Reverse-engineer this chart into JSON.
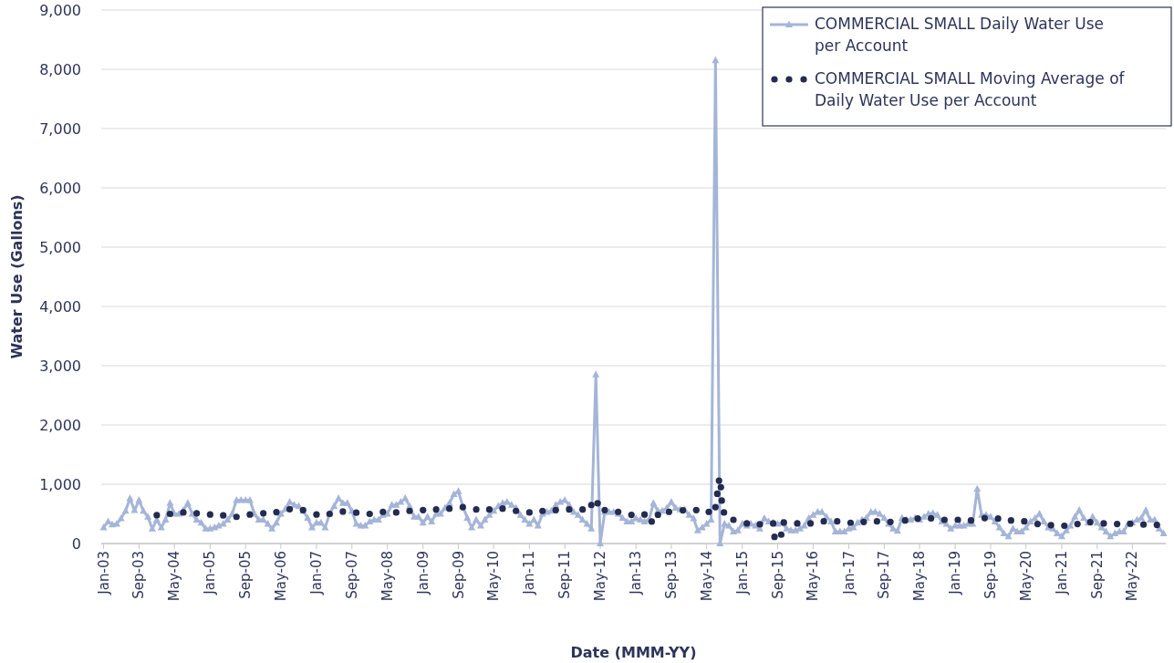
{
  "chart_data": {
    "type": "line",
    "xlabel": "Date (MMM-YY)",
    "ylabel": "Water Use (Gallons)",
    "x": [
      "2003-01",
      "2003-02",
      "2003-03",
      "2003-04",
      "2003-05",
      "2003-06",
      "2003-07",
      "2003-08",
      "2003-09",
      "2003-10",
      "2003-11",
      "2003-12",
      "2004-01",
      "2004-02",
      "2004-03",
      "2004-04",
      "2004-05",
      "2004-06",
      "2004-07",
      "2004-08",
      "2004-09",
      "2004-10",
      "2004-11",
      "2004-12",
      "2005-01",
      "2005-02",
      "2005-03",
      "2005-04",
      "2005-05",
      "2005-06",
      "2005-07",
      "2005-08",
      "2005-09",
      "2005-10",
      "2005-11",
      "2005-12",
      "2006-01",
      "2006-02",
      "2006-03",
      "2006-04",
      "2006-05",
      "2006-06",
      "2006-07",
      "2006-08",
      "2006-09",
      "2006-10",
      "2006-11",
      "2006-12",
      "2007-01",
      "2007-02",
      "2007-03",
      "2007-04",
      "2007-05",
      "2007-06",
      "2007-07",
      "2007-08",
      "2007-09",
      "2007-10",
      "2007-11",
      "2007-12",
      "2008-01",
      "2008-02",
      "2008-03",
      "2008-04",
      "2008-05",
      "2008-06",
      "2008-07",
      "2008-08",
      "2008-09",
      "2008-10",
      "2008-11",
      "2008-12",
      "2009-01",
      "2009-02",
      "2009-03",
      "2009-04",
      "2009-05",
      "2009-06",
      "2009-07",
      "2009-08",
      "2009-09",
      "2009-10",
      "2009-11",
      "2009-12",
      "2010-01",
      "2010-02",
      "2010-03",
      "2010-04",
      "2010-05",
      "2010-06",
      "2010-07",
      "2010-08",
      "2010-09",
      "2010-10",
      "2010-11",
      "2010-12",
      "2011-01",
      "2011-02",
      "2011-03",
      "2011-04",
      "2011-05",
      "2011-06",
      "2011-07",
      "2011-08",
      "2011-09",
      "2011-10",
      "2011-11",
      "2011-12",
      "2012-01",
      "2012-02",
      "2012-03",
      "2012-04",
      "2012-05",
      "2012-06",
      "2012-07",
      "2012-08",
      "2012-09",
      "2012-10",
      "2012-11",
      "2012-12",
      "2013-01",
      "2013-02",
      "2013-03",
      "2013-04",
      "2013-05",
      "2013-06",
      "2013-07",
      "2013-08",
      "2013-09",
      "2013-10",
      "2013-11",
      "2013-12",
      "2014-01",
      "2014-02",
      "2014-03",
      "2014-04",
      "2014-05",
      "2014-06",
      "2014-07",
      "2014-08",
      "2014-09",
      "2014-10",
      "2014-11",
      "2014-12",
      "2015-01",
      "2015-02",
      "2015-03",
      "2015-04",
      "2015-05",
      "2015-06",
      "2015-07",
      "2015-08",
      "2015-09",
      "2015-10",
      "2015-11",
      "2015-12",
      "2016-01",
      "2016-02",
      "2016-03",
      "2016-04",
      "2016-05",
      "2016-06",
      "2016-07",
      "2016-08",
      "2016-09",
      "2016-10",
      "2016-11",
      "2016-12",
      "2017-01",
      "2017-02",
      "2017-03",
      "2017-04",
      "2017-05",
      "2017-06",
      "2017-07",
      "2017-08",
      "2017-09",
      "2017-10",
      "2017-11",
      "2017-12",
      "2018-01",
      "2018-02",
      "2018-03",
      "2018-04",
      "2018-05",
      "2018-06",
      "2018-07",
      "2018-08",
      "2018-09",
      "2018-10",
      "2018-11",
      "2018-12",
      "2019-01",
      "2019-02",
      "2019-03",
      "2019-04",
      "2019-05",
      "2019-06",
      "2019-07",
      "2019-08",
      "2019-09",
      "2019-10",
      "2019-11",
      "2019-12",
      "2020-01",
      "2020-02",
      "2020-03",
      "2020-04",
      "2020-05",
      "2020-06",
      "2020-07",
      "2020-08",
      "2020-09",
      "2020-10",
      "2020-11",
      "2020-12",
      "2021-01",
      "2021-02",
      "2021-03",
      "2021-04",
      "2021-05",
      "2021-06",
      "2021-07",
      "2021-08",
      "2021-09",
      "2021-10",
      "2021-11",
      "2021-12",
      "2022-01",
      "2022-02",
      "2022-03",
      "2022-04",
      "2022-05",
      "2022-06",
      "2022-07",
      "2022-08",
      "2022-09",
      "2022-10",
      "2022-11",
      "2022-12"
    ],
    "series": [
      {
        "name": "COMMERCIAL SMALL Daily Water Use per Account",
        "color": "#a5b5d8",
        "marker": "triangle",
        "values": [
          270,
          370,
          320,
          330,
          425,
          550,
          760,
          560,
          730,
          550,
          450,
          250,
          400,
          270,
          400,
          680,
          500,
          500,
          560,
          680,
          500,
          400,
          350,
          250,
          250,
          270,
          300,
          330,
          400,
          500,
          730,
          730,
          730,
          730,
          500,
          400,
          400,
          330,
          250,
          350,
          500,
          580,
          700,
          650,
          630,
          550,
          430,
          270,
          350,
          350,
          270,
          500,
          630,
          760,
          680,
          680,
          550,
          330,
          300,
          300,
          370,
          400,
          400,
          480,
          500,
          650,
          650,
          700,
          760,
          630,
          450,
          450,
          350,
          450,
          370,
          500,
          500,
          600,
          680,
          830,
          880,
          630,
          430,
          270,
          400,
          300,
          400,
          480,
          550,
          630,
          680,
          700,
          650,
          600,
          480,
          400,
          330,
          400,
          300,
          500,
          530,
          550,
          650,
          700,
          730,
          650,
          530,
          480,
          400,
          330,
          250,
          2850,
          0,
          530,
          530,
          530,
          500,
          430,
          370,
          370,
          425,
          400,
          370,
          400,
          680,
          550,
          550,
          600,
          700,
          600,
          575,
          575,
          480,
          425,
          220,
          270,
          330,
          400,
          8150,
          0,
          330,
          300,
          200,
          220,
          330,
          300,
          330,
          300,
          250,
          425,
          370,
          350,
          330,
          350,
          250,
          220,
          220,
          250,
          300,
          425,
          480,
          530,
          530,
          450,
          370,
          200,
          200,
          200,
          250,
          270,
          350,
          400,
          430,
          530,
          530,
          500,
          430,
          330,
          250,
          210,
          430,
          400,
          400,
          430,
          400,
          450,
          500,
          510,
          480,
          370,
          330,
          250,
          300,
          300,
          300,
          330,
          330,
          920,
          480,
          480,
          450,
          370,
          270,
          170,
          120,
          250,
          200,
          200,
          270,
          370,
          425,
          500,
          370,
          270,
          250,
          170,
          120,
          220,
          300,
          450,
          560,
          430,
          350,
          450,
          350,
          270,
          200,
          120,
          170,
          200,
          200,
          330,
          350,
          400,
          430,
          560,
          400,
          400,
          250,
          170
        ]
      },
      {
        "name": "COMMERCIAL SMALL Moving Average of Daily Water Use per Account",
        "type": "scatter",
        "color": "#232b50",
        "marker": "circle",
        "x": [
          "2004-01-01",
          "2004-04-01",
          "2004-07-01",
          "2004-10-01",
          "2005-01-01",
          "2005-04-01",
          "2005-07-01",
          "2005-10-01",
          "2006-01-01",
          "2006-04-01",
          "2006-07-01",
          "2006-10-01",
          "2007-01-01",
          "2007-04-01",
          "2007-07-01",
          "2007-10-01",
          "2008-01-01",
          "2008-04-01",
          "2008-07-01",
          "2008-10-01",
          "2009-01-01",
          "2009-04-01",
          "2009-07-01",
          "2009-10-01",
          "2010-01-01",
          "2010-04-01",
          "2010-07-01",
          "2010-10-01",
          "2011-01-01",
          "2011-04-01",
          "2011-07-01",
          "2011-10-01",
          "2012-01-01",
          "2012-03-01",
          "2012-04-13",
          "2012-06-01",
          "2012-09-01",
          "2012-12-01",
          "2013-03-01",
          "2013-04-19",
          "2013-06-01",
          "2013-08-16",
          "2013-11-19",
          "2014-02-19",
          "2014-05-16",
          "2014-07-01",
          "2014-07-13",
          "2014-07-25",
          "2014-08-07",
          "2014-08-13",
          "2014-08-28",
          "2014-11-01",
          "2015-02-01",
          "2015-05-01",
          "2015-08-01",
          "2015-08-10",
          "2015-09-25",
          "2015-10-13",
          "2016-01-13",
          "2016-04-13",
          "2016-07-13",
          "2016-10-13",
          "2017-01-13",
          "2017-04-13",
          "2017-07-13",
          "2017-10-13",
          "2018-01-22",
          "2018-04-19",
          "2018-07-19",
          "2018-10-19",
          "2019-01-19",
          "2019-04-19",
          "2019-07-22",
          "2019-10-22",
          "2020-01-19",
          "2020-04-19",
          "2020-07-19",
          "2020-10-19",
          "2021-01-19",
          "2021-04-19",
          "2021-07-16",
          "2021-10-16",
          "2022-01-16",
          "2022-04-16",
          "2022-07-16",
          "2022-10-16"
        ],
        "values": [
          478,
          500,
          525,
          510,
          490,
          475,
          450,
          490,
          510,
          530,
          580,
          565,
          490,
          500,
          540,
          520,
          500,
          535,
          525,
          550,
          565,
          575,
          590,
          615,
          575,
          575,
          590,
          550,
          525,
          550,
          565,
          575,
          575,
          650,
          680,
          565,
          535,
          485,
          490,
          370,
          485,
          535,
          560,
          565,
          535,
          615,
          840,
          1060,
          950,
          725,
          525,
          400,
          340,
          325,
          340,
          113,
          150,
          355,
          340,
          340,
          375,
          375,
          350,
          365,
          375,
          365,
          390,
          420,
          425,
          400,
          400,
          390,
          430,
          420,
          390,
          375,
          330,
          310,
          300,
          330,
          360,
          340,
          330,
          335,
          320,
          315
        ]
      }
    ],
    "xlim": [
      "2002-12-16",
      "2022-12-16"
    ],
    "xticks": [
      {
        "value": "2003-01",
        "label": "Jan-03"
      },
      {
        "value": "2003-09",
        "label": "Sep-03"
      },
      {
        "value": "2004-05",
        "label": "May-04"
      },
      {
        "value": "2005-01",
        "label": "Jan-05"
      },
      {
        "value": "2005-09",
        "label": "Sep-05"
      },
      {
        "value": "2006-05",
        "label": "May-06"
      },
      {
        "value": "2007-01",
        "label": "Jan-07"
      },
      {
        "value": "2007-09",
        "label": "Sep-07"
      },
      {
        "value": "2008-05",
        "label": "May-08"
      },
      {
        "value": "2009-01",
        "label": "Jan-09"
      },
      {
        "value": "2009-09",
        "label": "Sep-09"
      },
      {
        "value": "2010-05",
        "label": "May-10"
      },
      {
        "value": "2011-01",
        "label": "Jan-11"
      },
      {
        "value": "2011-09",
        "label": "Sep-11"
      },
      {
        "value": "2012-05",
        "label": "May-12"
      },
      {
        "value": "2013-01",
        "label": "Jan-13"
      },
      {
        "value": "2013-09",
        "label": "Sep-13"
      },
      {
        "value": "2014-05",
        "label": "May-14"
      },
      {
        "value": "2015-01",
        "label": "Jan-15"
      },
      {
        "value": "2015-09",
        "label": "Sep-15"
      },
      {
        "value": "2016-05",
        "label": "May-16"
      },
      {
        "value": "2017-01",
        "label": "Jan-17"
      },
      {
        "value": "2017-09",
        "label": "Sep-17"
      },
      {
        "value": "2018-05",
        "label": "May-18"
      },
      {
        "value": "2019-01",
        "label": "Jan-19"
      },
      {
        "value": "2019-09",
        "label": "Sep-19"
      },
      {
        "value": "2020-05",
        "label": "May-20"
      },
      {
        "value": "2021-01",
        "label": "Jan-21"
      },
      {
        "value": "2021-09",
        "label": "Sep-21"
      },
      {
        "value": "2022-05",
        "label": "May-22"
      }
    ],
    "ylim": [
      0,
      9000
    ],
    "yticks": [
      0,
      {
        "value": 1000,
        "label": "1,000"
      },
      {
        "value": 2000,
        "label": "2,000"
      },
      {
        "value": 3000,
        "label": "3,000"
      },
      {
        "value": 4000,
        "label": "4,000"
      },
      {
        "value": 5000,
        "label": "5,000"
      },
      {
        "value": 6000,
        "label": "6,000"
      },
      {
        "value": 7000,
        "label": "7,000"
      },
      {
        "value": 8000,
        "label": "8,000"
      },
      {
        "value": 9000,
        "label": "9,000"
      }
    ],
    "grid": "y",
    "legend": "top right"
  }
}
